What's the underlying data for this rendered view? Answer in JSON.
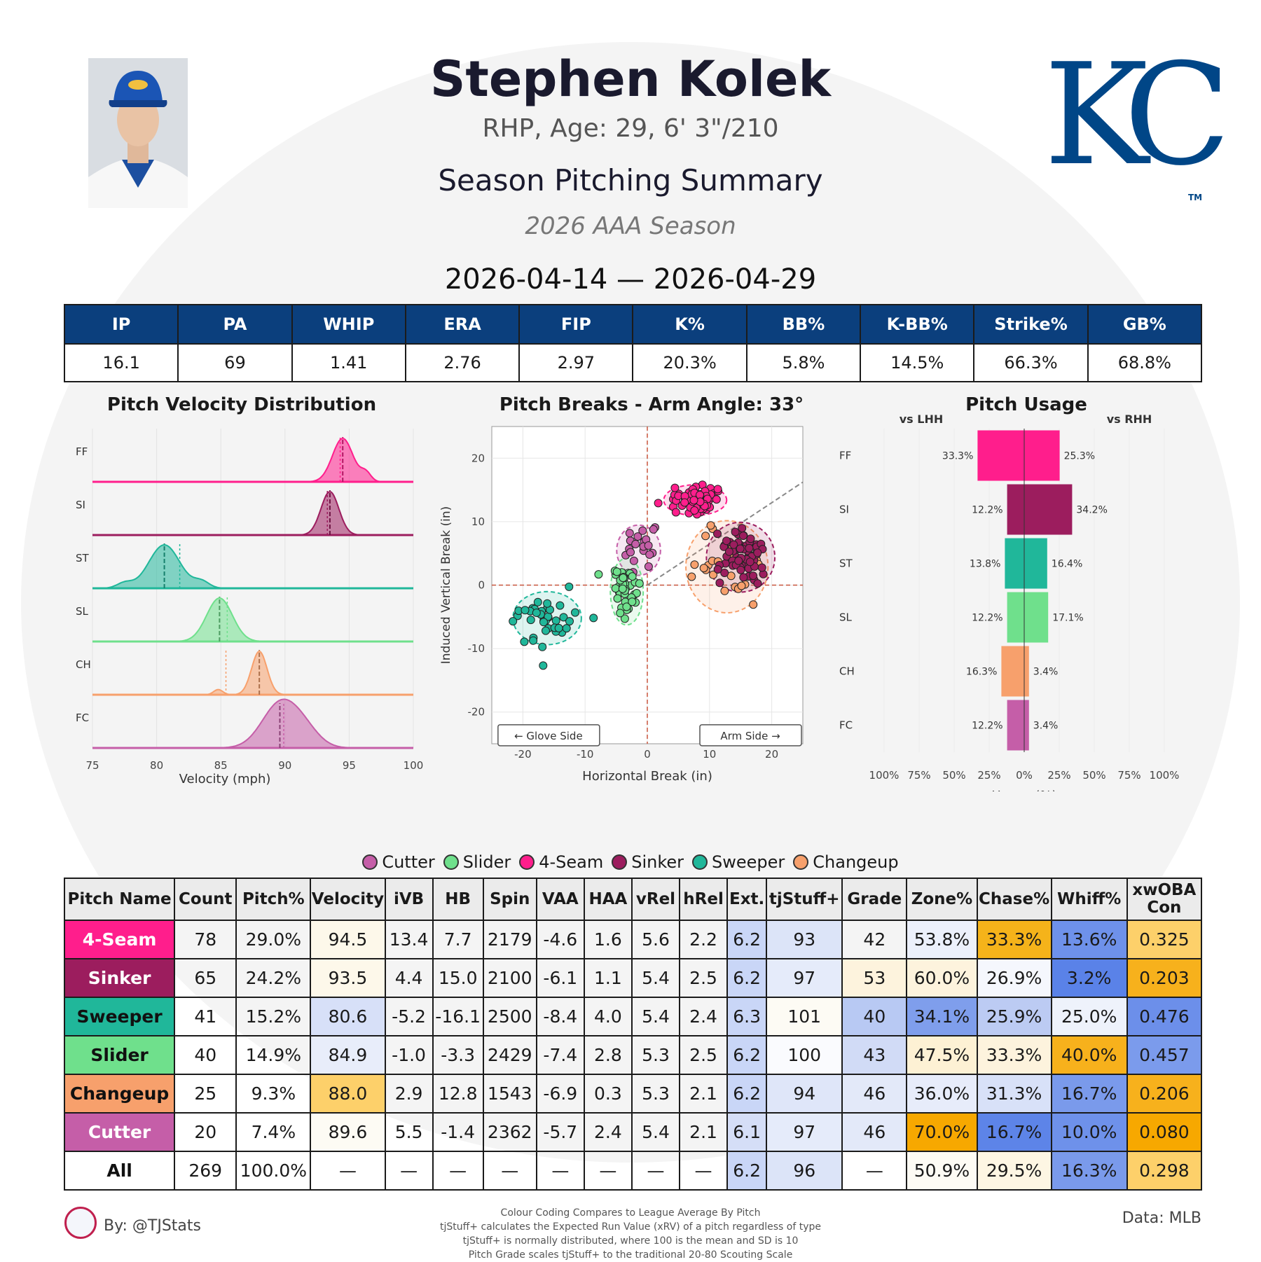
{
  "header": {
    "name": "Stephen Kolek",
    "bio": "RHP, Age: 29, 6' 3\"/210",
    "subtitle": "Season Pitching Summary",
    "season": "2026 AAA Season",
    "date_range": "2026-04-14 — 2026-04-29",
    "logo_text": "KC",
    "logo_tm": "TM"
  },
  "stats": {
    "headers": [
      "IP",
      "PA",
      "WHIP",
      "ERA",
      "FIP",
      "K%",
      "BB%",
      "K-BB%",
      "Strike%",
      "GB%"
    ],
    "values": [
      "16.1",
      "69",
      "1.41",
      "2.76",
      "2.97",
      "20.3%",
      "5.8%",
      "14.5%",
      "66.3%",
      "68.8%"
    ]
  },
  "colors": {
    "FF": "#ff1e8c",
    "SI": "#9c1d5e",
    "ST": "#20b79a",
    "SL": "#6fe08c",
    "CH": "#f7a06c",
    "FC": "#c55ea8",
    "header_blue": "#0b3f7d",
    "kc_blue": "#004687"
  },
  "chart_data": [
    {
      "type": "area",
      "title": "Pitch Velocity Distribution",
      "xlabel": "Velocity (mph)",
      "xlim": [
        75,
        100
      ],
      "xticks": [
        "75",
        "80",
        "85",
        "90",
        "95",
        "100"
      ],
      "series": [
        {
          "name": "FF",
          "mean": 94.5,
          "league": 94.3,
          "sd": 0.8
        },
        {
          "name": "SI",
          "mean": 93.5,
          "league": 93.3,
          "sd": 0.7
        },
        {
          "name": "ST",
          "mean": 80.6,
          "league": 81.8,
          "sd": 1.2
        },
        {
          "name": "SL",
          "mean": 84.9,
          "league": 85.5,
          "sd": 1.0
        },
        {
          "name": "CH",
          "mean": 88.0,
          "league": 85.4,
          "sd": 0.6
        },
        {
          "name": "FC",
          "mean": 89.6,
          "league": 89.9,
          "sd": 1.4
        }
      ]
    },
    {
      "type": "scatter",
      "title": "Pitch Breaks - Arm Angle: 33°",
      "xlabel": "Horizontal Break (in)",
      "ylabel": "Induced Vertical Break (in)",
      "xlim": [
        -25,
        25
      ],
      "ylim": [
        -25,
        25
      ],
      "xticks": [
        "-20",
        "-10",
        "0",
        "10",
        "20"
      ],
      "yticks": [
        "20",
        "10",
        "0",
        "-10",
        "-20"
      ],
      "arm_angle_deg": 33,
      "glove_side_label": "← Glove Side",
      "arm_side_label": "Arm Side →",
      "clusters": [
        {
          "name": "FF",
          "hb": 7.7,
          "ivb": 13.4,
          "count": 78,
          "sx": 2.3,
          "sy": 1.1
        },
        {
          "name": "SI",
          "hb": 15.0,
          "ivb": 4.4,
          "count": 65,
          "sx": 2.5,
          "sy": 2.5
        },
        {
          "name": "ST",
          "hb": -16.1,
          "ivb": -5.2,
          "count": 41,
          "sx": 2.5,
          "sy": 1.9
        },
        {
          "name": "SL",
          "hb": -3.3,
          "ivb": -1.0,
          "count": 40,
          "sx": 1.2,
          "sy": 2.4
        },
        {
          "name": "CH",
          "hb": 12.8,
          "ivb": 2.9,
          "count": 25,
          "sx": 3.0,
          "sy": 3.3
        },
        {
          "name": "FC",
          "hb": -1.4,
          "ivb": 5.5,
          "count": 20,
          "sx": 1.6,
          "sy": 1.8
        }
      ]
    },
    {
      "type": "bar",
      "title": "Pitch Usage",
      "xlabel": "Usage (%)",
      "left_label": "vs LHH",
      "right_label": "vs RHH",
      "xticks": [
        "100%",
        "75%",
        "50%",
        "25%",
        "0%",
        "25%",
        "50%",
        "75%",
        "100%"
      ],
      "categories": [
        "FF",
        "SI",
        "ST",
        "SL",
        "CH",
        "FC"
      ],
      "series": [
        {
          "name": "vs LHH",
          "values": [
            33.3,
            12.2,
            13.8,
            12.2,
            16.3,
            12.2
          ],
          "labels": [
            "33.3%",
            "12.2%",
            "13.8%",
            "12.2%",
            "16.3%",
            "12.2%"
          ]
        },
        {
          "name": "vs RHH",
          "values": [
            25.3,
            34.2,
            16.4,
            17.1,
            3.4,
            3.4
          ],
          "labels": [
            "25.3%",
            "34.2%",
            "16.4%",
            "17.1%",
            "3.4%",
            "3.4%"
          ]
        }
      ]
    }
  ],
  "legend": [
    {
      "label": "Cutter",
      "code": "FC"
    },
    {
      "label": "Slider",
      "code": "SL"
    },
    {
      "label": "4-Seam",
      "code": "FF"
    },
    {
      "label": "Sinker",
      "code": "SI"
    },
    {
      "label": "Sweeper",
      "code": "ST"
    },
    {
      "label": "Changeup",
      "code": "CH"
    }
  ],
  "pitch_table": {
    "headers": [
      "Pitch Name",
      "Count",
      "Pitch%",
      "Velocity",
      "iVB",
      "HB",
      "Spin",
      "VAA",
      "HAA",
      "vRel",
      "hRel",
      "Ext.",
      "tjStuff+",
      "Grade",
      "Zone%",
      "Chase%",
      "Whiff%",
      "xwOBA Con"
    ],
    "rows": [
      {
        "name": "4-Seam",
        "code": "FF",
        "text_color": "#ffffff",
        "cells": [
          "78",
          "29.0%",
          "94.5",
          "13.4",
          "7.7",
          "2179",
          "-4.6",
          "1.6",
          "5.6",
          "2.2",
          "6.2",
          "93",
          "42",
          "53.8%",
          "33.3%",
          "13.6%",
          "0.325"
        ],
        "shades": [
          "",
          "",
          "#fdf8ea",
          "",
          "",
          "",
          "",
          "",
          "",
          "",
          "#c9d6f7",
          "#dce4f8",
          "",
          "#ecf0fb",
          "#f5b31a",
          "#6e91ea",
          "#fdd06a"
        ]
      },
      {
        "name": "Sinker",
        "code": "SI",
        "text_color": "#ffffff",
        "cells": [
          "65",
          "24.2%",
          "93.5",
          "4.4",
          "15.0",
          "2100",
          "-6.1",
          "1.1",
          "5.4",
          "2.5",
          "6.2",
          "97",
          "53",
          "60.0%",
          "26.9%",
          "3.2%",
          "0.203"
        ],
        "shades": [
          "",
          "",
          "#fdf8ea",
          "",
          "",
          "",
          "",
          "",
          "",
          "",
          "#c9d6f7",
          "#e5ebfa",
          "#fdf3dd",
          "#fdf3dd",
          "#f5f7fd",
          "#5a82e8",
          "#f7b11c"
        ]
      },
      {
        "name": "Sweeper",
        "code": "ST",
        "text_color": "#111111",
        "cells": [
          "41",
          "15.2%",
          "80.6",
          "-5.2",
          "-16.1",
          "2500",
          "-8.4",
          "4.0",
          "5.4",
          "2.4",
          "6.3",
          "101",
          "40",
          "34.1%",
          "25.9%",
          "25.0%",
          "0.476"
        ],
        "shades": [
          "",
          "",
          "#d7e0f8",
          "",
          "",
          "",
          "",
          "",
          "",
          "",
          "#c9d6f7",
          "#fdfbf4",
          "#b8c9f3",
          "#7f9eec",
          "#bccbf3",
          "#eef2fb",
          "#6c8fea"
        ]
      },
      {
        "name": "Slider",
        "code": "SL",
        "text_color": "#111111",
        "cells": [
          "40",
          "14.9%",
          "84.9",
          "-1.0",
          "-3.3",
          "2429",
          "-7.4",
          "2.8",
          "5.3",
          "2.5",
          "6.2",
          "100",
          "43",
          "47.5%",
          "33.3%",
          "40.0%",
          "0.457"
        ],
        "shades": [
          "",
          "",
          "#e8edfa",
          "",
          "",
          "",
          "",
          "",
          "",
          "",
          "#c9d6f7",
          "#fafbfe",
          "#d1dbf6",
          "#fdf1d4",
          "#fdf3dd",
          "#f7b11c",
          "#7b9bec"
        ]
      },
      {
        "name": "Changeup",
        "code": "CH",
        "text_color": "#111111",
        "cells": [
          "25",
          "9.3%",
          "88.0",
          "2.9",
          "12.8",
          "1543",
          "-6.9",
          "0.3",
          "5.3",
          "2.1",
          "6.2",
          "94",
          "46",
          "36.0%",
          "31.3%",
          "16.7%",
          "0.206"
        ],
        "shades": [
          "",
          "",
          "#fdd06a",
          "",
          "",
          "",
          "",
          "",
          "",
          "",
          "#c9d6f7",
          "#dfe6f9",
          "#e3e9f9",
          "#e7ecfa",
          "#d8e1f8",
          "#7a9aeb",
          "#f7b11c"
        ]
      },
      {
        "name": "Cutter",
        "code": "FC",
        "text_color": "#ffffff",
        "cells": [
          "20",
          "7.4%",
          "89.6",
          "5.5",
          "-1.4",
          "2362",
          "-5.7",
          "2.4",
          "5.4",
          "2.1",
          "6.1",
          "97",
          "46",
          "70.0%",
          "16.7%",
          "10.0%",
          "0.080"
        ],
        "shades": [
          "",
          "",
          "#fdfbf4",
          "",
          "",
          "",
          "",
          "",
          "",
          "",
          "#d5def7",
          "#e5ebfa",
          "#e3e9f9",
          "#f7a800",
          "#5d84e8",
          "#6e91ea",
          "#f7a800"
        ]
      },
      {
        "name": "All",
        "code": "ALL",
        "text_color": "#111111",
        "cells": [
          "269",
          "100.0%",
          "—",
          "—",
          "—",
          "—",
          "—",
          "—",
          "—",
          "—",
          "6.2",
          "96",
          "—",
          "50.9%",
          "29.5%",
          "16.3%",
          "0.298"
        ],
        "shades": [
          "",
          "",
          "",
          "",
          "",
          "",
          "",
          "",
          "",
          "",
          "#c9d6f7",
          "#dce4f8",
          "",
          "#fdfbf4",
          "#fdf6e3",
          "#7a9aeb",
          "#fdd06a"
        ]
      }
    ]
  },
  "footer": {
    "by": "By: @TJStats",
    "data": "Data: MLB",
    "notes": [
      "Colour Coding Compares to League Average By Pitch",
      "tjStuff+ calculates the Expected Run Value (xRV) of a pitch regardless of type",
      "tjStuff+ is normally distributed, where 100 is the mean and SD is 10",
      "Pitch Grade scales tjStuff+ to the traditional 20-80 Scouting Scale"
    ]
  }
}
